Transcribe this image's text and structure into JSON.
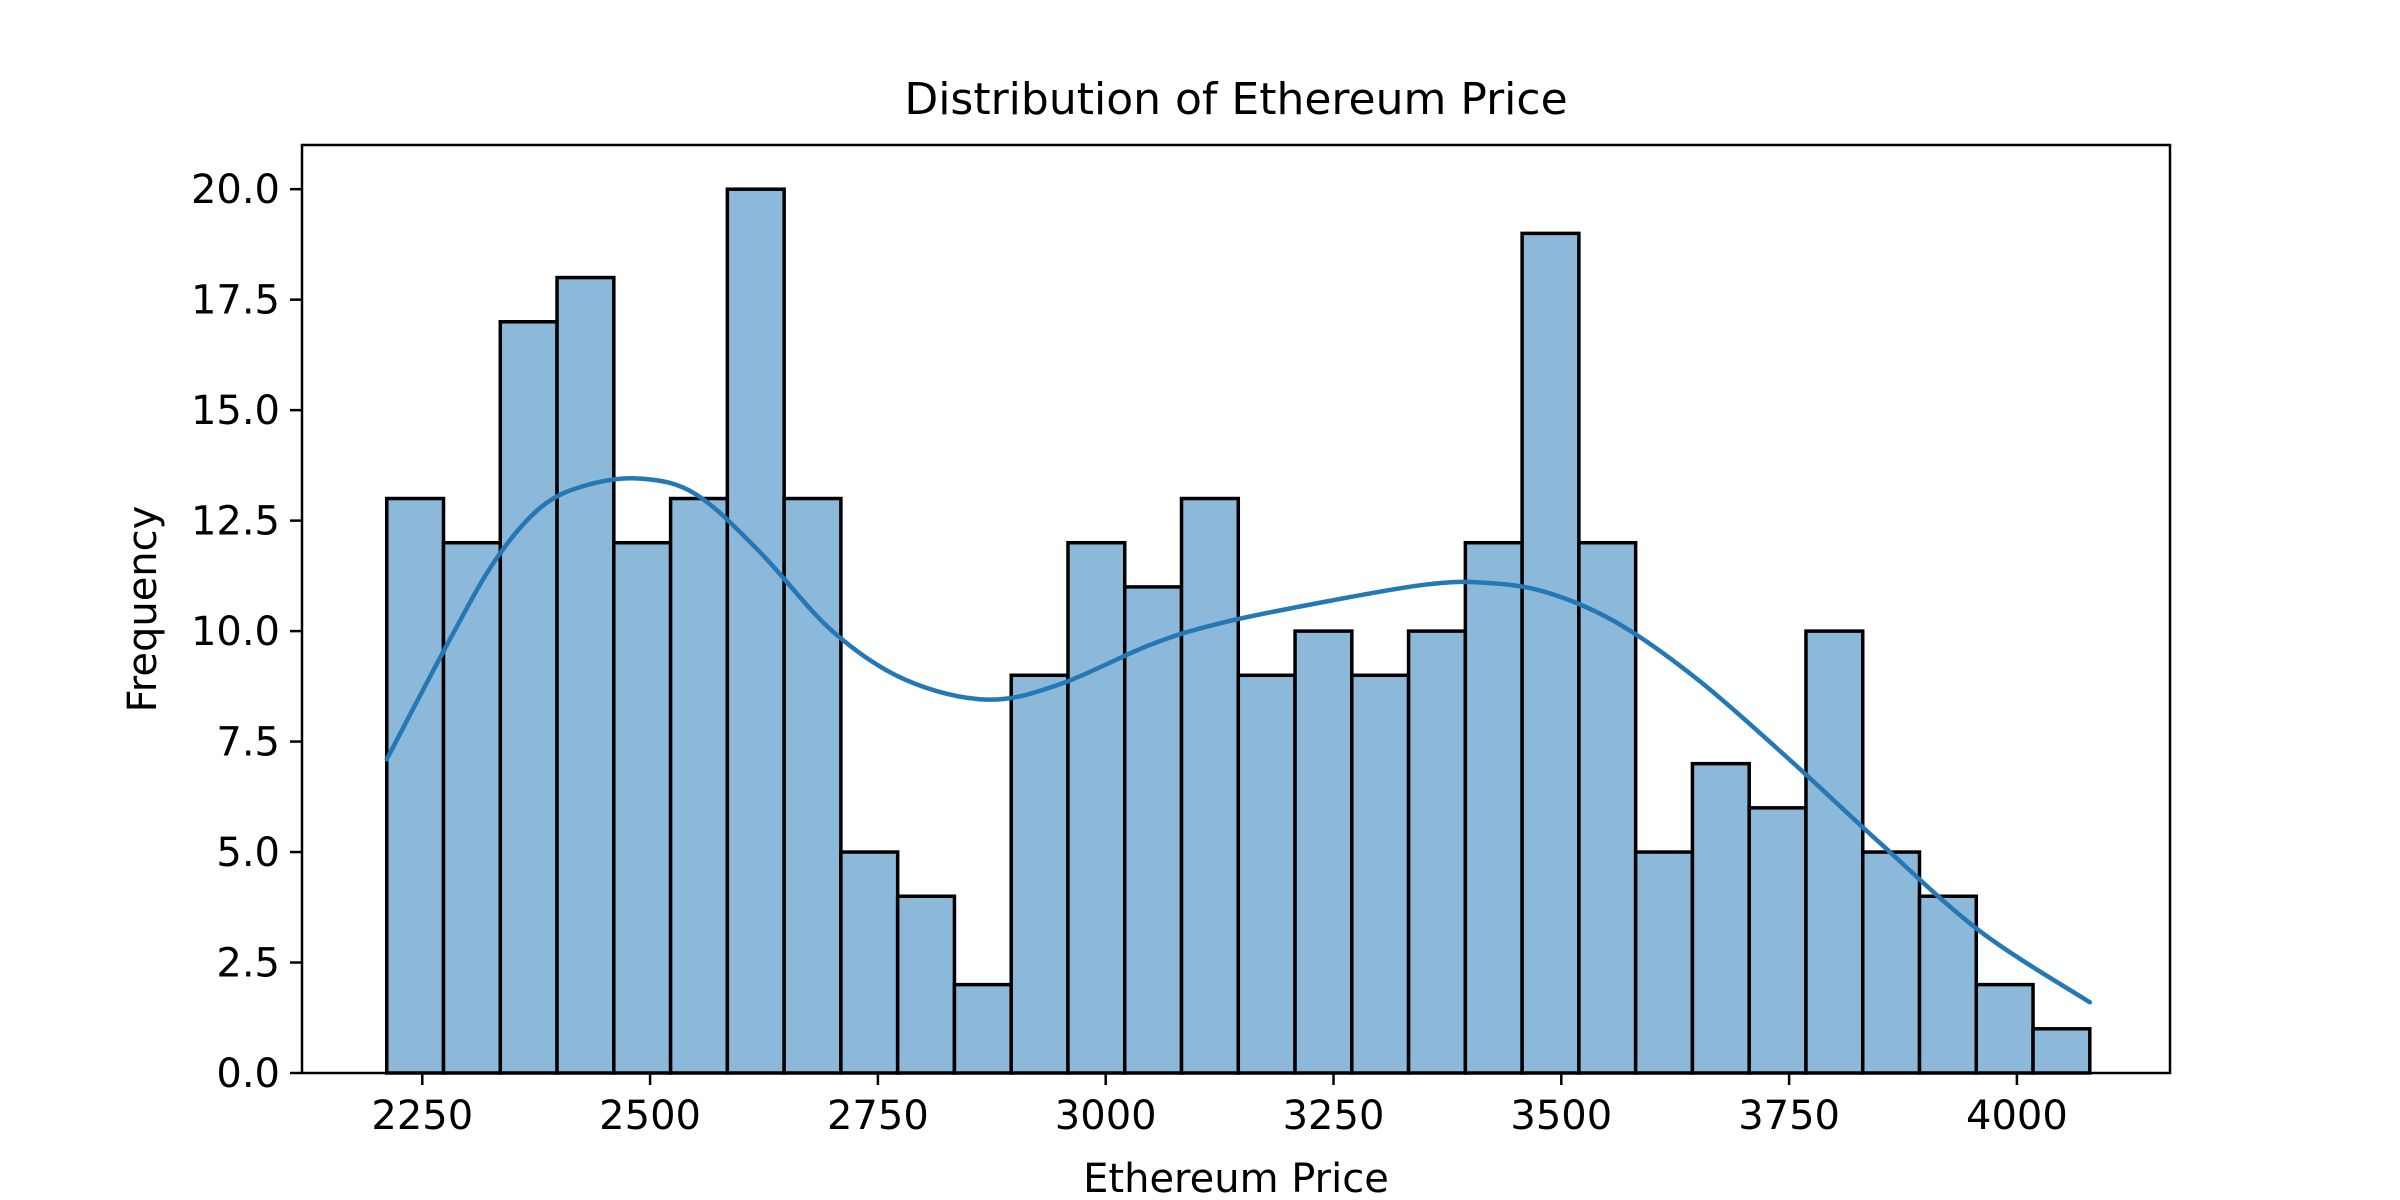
{
  "chart_data": {
    "type": "bar",
    "title": "Distribution of Ethereum Price",
    "xlabel": "Ethereum Price",
    "ylabel": "Frequency",
    "xlim": [
      2118,
      4168
    ],
    "ylim": [
      0,
      21
    ],
    "xticks": [
      2250,
      2500,
      2750,
      3000,
      3250,
      3500,
      3750,
      4000
    ],
    "xtick_labels": [
      "2250",
      "2500",
      "2750",
      "3000",
      "3250",
      "3500",
      "3750",
      "4000"
    ],
    "yticks": [
      0,
      2.5,
      5,
      7.5,
      10,
      12.5,
      15,
      17.5,
      20
    ],
    "ytick_labels": [
      "0.0",
      "2.5",
      "5.0",
      "7.5",
      "10.0",
      "12.5",
      "15.0",
      "17.5",
      "20.0"
    ],
    "bin_edges": [
      2211,
      2273.3,
      2335.6,
      2397.9,
      2460.2,
      2522.5,
      2584.8,
      2647.1,
      2709.4,
      2771.7,
      2834,
      2896.3,
      2958.6,
      3020.9,
      3083.2,
      3145.5,
      3207.8,
      3270.1,
      3332.4,
      3394.7,
      3457,
      3519.3,
      3581.6,
      3643.9,
      3706.2,
      3768.5,
      3830.8,
      3893.1,
      3955.4,
      4017.7,
      4080
    ],
    "values": [
      13,
      12,
      17,
      18,
      12,
      13,
      20,
      13,
      5,
      4,
      2,
      9,
      12,
      11,
      13,
      9,
      10,
      9,
      10,
      12,
      19,
      12,
      5,
      7,
      6,
      10,
      5,
      4,
      2,
      1
    ],
    "kde": {
      "x": [
        2211,
        2280,
        2330,
        2380,
        2430,
        2490,
        2550,
        2620,
        2700,
        2780,
        2870,
        2950,
        3050,
        3130,
        3250,
        3350,
        3410,
        3480,
        3560,
        3650,
        3750,
        3850,
        3960,
        4080
      ],
      "y": [
        7.1,
        9.8,
        11.6,
        12.8,
        13.3,
        13.45,
        13.1,
        11.8,
        10.0,
        8.9,
        8.45,
        8.8,
        9.7,
        10.2,
        10.7,
        11.05,
        11.1,
        10.9,
        10.2,
        8.9,
        7.1,
        5.2,
        3.2,
        1.6
      ]
    },
    "grid": false,
    "colors": {
      "bar_fill": "#8cb8da",
      "bar_edge": "#000000",
      "kde_line": "#2478b5"
    }
  }
}
